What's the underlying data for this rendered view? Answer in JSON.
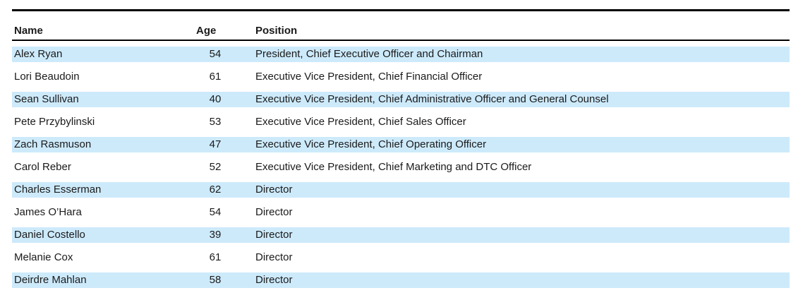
{
  "table": {
    "columns": [
      {
        "label": "Name"
      },
      {
        "label": "Age"
      },
      {
        "label": "Position"
      }
    ],
    "rows": [
      {
        "name": "Alex Ryan",
        "age": "54",
        "position": "President, Chief Executive Officer and Chairman",
        "highlighted": true
      },
      {
        "name": "Lori Beaudoin",
        "age": "61",
        "position": "Executive Vice President, Chief Financial Officer",
        "highlighted": false
      },
      {
        "name": "Sean Sullivan",
        "age": "40",
        "position": "Executive Vice President, Chief Administrative Officer and General Counsel",
        "highlighted": true
      },
      {
        "name": "Pete Przybylinski",
        "age": "53",
        "position": "Executive Vice President, Chief Sales Officer",
        "highlighted": false
      },
      {
        "name": "Zach Rasmuson",
        "age": "47",
        "position": "Executive Vice President, Chief Operating Officer",
        "highlighted": true
      },
      {
        "name": "Carol Reber",
        "age": "52",
        "position": "Executive Vice President, Chief Marketing and DTC Officer",
        "highlighted": false
      },
      {
        "name": "Charles Esserman",
        "age": "62",
        "position": "Director",
        "highlighted": true
      },
      {
        "name": "James O’Hara",
        "age": "54",
        "position": "Director",
        "highlighted": false
      },
      {
        "name": "Daniel Costello",
        "age": "39",
        "position": "Director",
        "highlighted": true
      },
      {
        "name": "Melanie Cox",
        "age": "61",
        "position": "Director",
        "highlighted": false
      },
      {
        "name": "Deirdre Mahlan",
        "age": "58",
        "position": "Director",
        "highlighted": true
      }
    ],
    "colors": {
      "row_highlight": "#cdeafb",
      "rule": "#000000",
      "text": "#1a1a1a"
    }
  }
}
